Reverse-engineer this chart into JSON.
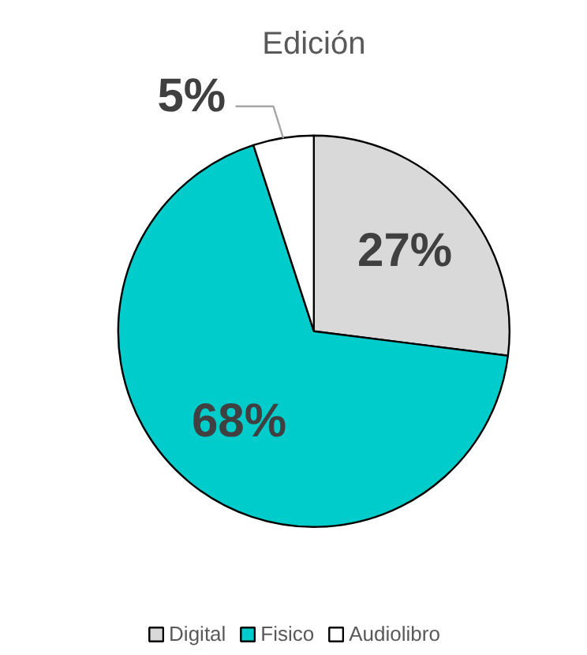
{
  "chart_data": {
    "type": "pie",
    "title": "Edición",
    "categories": [
      "Digital",
      "Fisico",
      "Audiolibro"
    ],
    "values": [
      27,
      68,
      5
    ],
    "colors": [
      "#d9d9d9",
      "#00cccc",
      "#ffffff"
    ],
    "value_labels": [
      "27%",
      "68%",
      "5%"
    ],
    "legend": "bottom"
  }
}
